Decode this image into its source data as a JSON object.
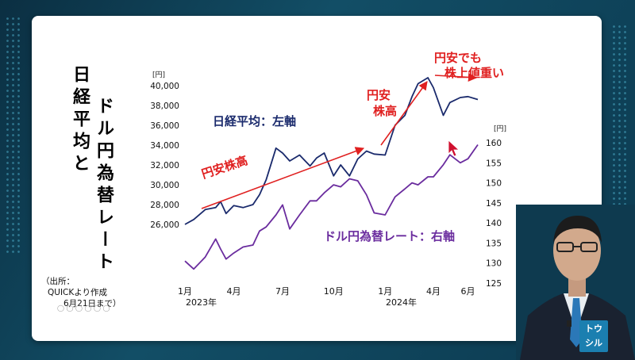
{
  "slide": {
    "title_part1": "日経平均と",
    "title_part2": "ドル円為替レート",
    "source_lines": [
      "（出所：",
      "QUICKより作成",
      "6月21日まで）"
    ]
  },
  "logo": {
    "text": "トウシル"
  },
  "colors": {
    "nikkei": "#1a2a6c",
    "usdjpy": "#6a2c9e",
    "arrow": "#e02020",
    "label_red": "#e02020"
  },
  "chart_data": {
    "type": "line",
    "x_ticks": [
      "1月",
      "4月",
      "7月",
      "10月",
      "1月",
      "4月",
      "6月"
    ],
    "x_years": [
      "2023年",
      "2024年"
    ],
    "left_axis": {
      "unit": "[円]",
      "ticks": [
        26000,
        28000,
        30000,
        32000,
        34000,
        36000,
        38000,
        40000
      ],
      "ylim": [
        26000,
        40000
      ]
    },
    "right_axis": {
      "unit": "[円]",
      "ticks": [
        125,
        130,
        135,
        140,
        145,
        150,
        155,
        160
      ],
      "ylim": [
        125,
        160
      ]
    },
    "series": [
      {
        "name": "日経平均：左軸",
        "axis": "left",
        "x": [
          "2023-01-04",
          "2023-01-20",
          "2023-02-10",
          "2023-03-01",
          "2023-03-10",
          "2023-03-20",
          "2023-04-03",
          "2023-04-20",
          "2023-05-08",
          "2023-05-20",
          "2023-06-01",
          "2023-06-19",
          "2023-07-01",
          "2023-07-14",
          "2023-08-01",
          "2023-08-20",
          "2023-09-01",
          "2023-09-15",
          "2023-10-02",
          "2023-10-15",
          "2023-10-31",
          "2023-11-15",
          "2023-12-01",
          "2023-12-15",
          "2024-01-04",
          "2024-01-22",
          "2024-02-09",
          "2024-02-22",
          "2024-03-04",
          "2024-03-22",
          "2024-04-01",
          "2024-04-19",
          "2024-05-01",
          "2024-05-20",
          "2024-06-03",
          "2024-06-21"
        ],
        "values": [
          26000,
          26500,
          27500,
          27700,
          28300,
          27100,
          27900,
          27700,
          28000,
          29000,
          30500,
          33700,
          33200,
          32400,
          33000,
          31900,
          32700,
          33200,
          30900,
          32000,
          30900,
          32600,
          33400,
          33100,
          33000,
          36000,
          37000,
          38900,
          40200,
          40800,
          39800,
          37000,
          38300,
          38800,
          38900,
          38600
        ]
      },
      {
        "name": "ドル円為替レート：右軸",
        "axis": "right",
        "x": [
          "2023-01-04",
          "2023-01-20",
          "2023-02-10",
          "2023-03-01",
          "2023-03-10",
          "2023-03-20",
          "2023-04-03",
          "2023-04-20",
          "2023-05-08",
          "2023-05-20",
          "2023-06-01",
          "2023-06-19",
          "2023-07-01",
          "2023-07-14",
          "2023-08-01",
          "2023-08-20",
          "2023-09-01",
          "2023-09-15",
          "2023-10-02",
          "2023-10-15",
          "2023-10-31",
          "2023-11-15",
          "2023-12-01",
          "2023-12-15",
          "2024-01-04",
          "2024-01-22",
          "2024-02-09",
          "2024-02-22",
          "2024-03-04",
          "2024-03-22",
          "2024-04-01",
          "2024-04-19",
          "2024-05-01",
          "2024-05-20",
          "2024-06-03",
          "2024-06-21"
        ],
        "values": [
          130.5,
          128.5,
          131.5,
          136,
          133.5,
          131,
          132.5,
          134,
          134.5,
          138,
          139,
          142,
          144.5,
          138.5,
          142,
          145.5,
          145.5,
          147.5,
          149.5,
          149,
          151,
          150.5,
          147,
          142.5,
          142,
          146.5,
          148.5,
          150,
          149.5,
          151.5,
          151.5,
          154.5,
          157,
          155,
          156,
          159.5
        ]
      }
    ],
    "annotations": [
      {
        "text": "日経平均：左軸"
      },
      {
        "text": "ドル円為替レート：右軸"
      },
      {
        "text": "円安株高"
      },
      {
        "text": "円安\n株高"
      },
      {
        "text": "円安でも\n株上値重い"
      }
    ]
  }
}
